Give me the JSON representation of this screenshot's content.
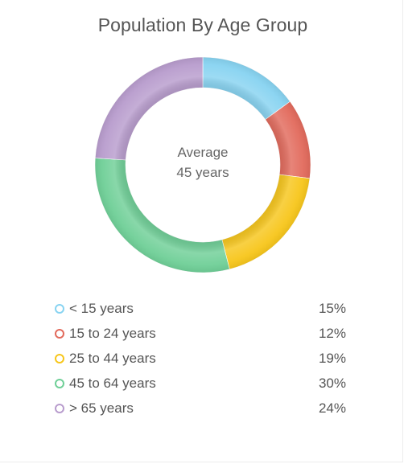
{
  "chart_data": {
    "type": "pie",
    "title": "Population By Age Group",
    "center_label": [
      "Average",
      "45 years"
    ],
    "categories": [
      "< 15 years",
      "15 to 24 years",
      "25 to 44 years",
      "45 to 64 years",
      "> 65 years"
    ],
    "values": [
      15,
      12,
      19,
      30,
      24
    ],
    "value_labels": [
      "15%",
      "12%",
      "19%",
      "30%",
      "24%"
    ],
    "colors": [
      "#87d3f1",
      "#e26a5c",
      "#f7c61b",
      "#6fcf97",
      "#b89ccd"
    ],
    "legend_position": "bottom"
  }
}
